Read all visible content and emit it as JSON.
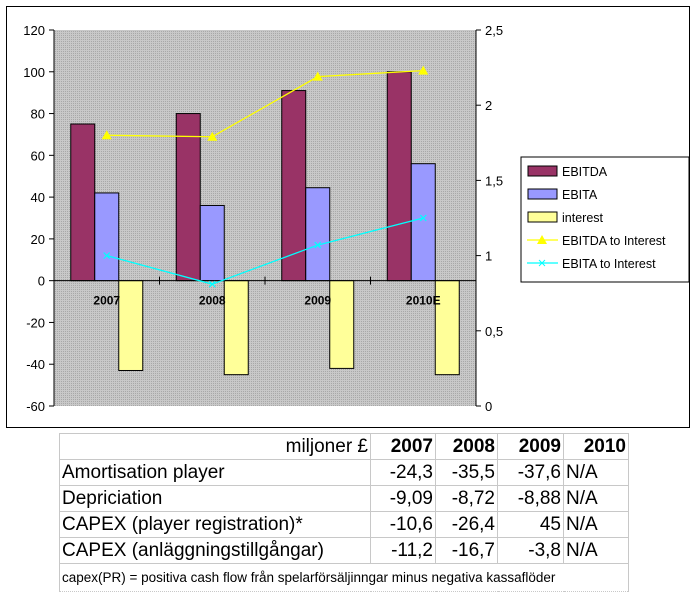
{
  "chart_data": {
    "type": "bar",
    "categories": [
      "2007",
      "2008",
      "2009",
      "2010E"
    ],
    "series": [
      {
        "name": "EBITDA",
        "kind": "bar",
        "axis": "left",
        "color": "#993366",
        "values": [
          75,
          80,
          91,
          100
        ]
      },
      {
        "name": "EBITA",
        "kind": "bar",
        "axis": "left",
        "color": "#9999FF",
        "values": [
          42,
          36,
          44.5,
          56
        ]
      },
      {
        "name": "interest",
        "kind": "bar",
        "axis": "left",
        "color": "#FFFF99",
        "values": [
          -43,
          -45,
          -42,
          -45
        ]
      },
      {
        "name": "EBITDA to Interest",
        "kind": "line",
        "axis": "right",
        "marker": "triangle",
        "color": "#FFFF00",
        "values": [
          1.8,
          1.79,
          2.19,
          2.23
        ]
      },
      {
        "name": "EBITA to Interest",
        "kind": "line",
        "axis": "right",
        "marker": "x",
        "color": "#00FFFF",
        "values": [
          1.0,
          0.81,
          1.07,
          1.25
        ]
      }
    ],
    "y_left": {
      "min": -60,
      "max": 120,
      "ticks": [
        "120",
        "100",
        "80",
        "60",
        "40",
        "20",
        "0",
        "-20",
        "-40",
        "-60"
      ]
    },
    "y_right": {
      "min": 0,
      "max": 2.5,
      "ticks": [
        "2,5",
        "2",
        "1,5",
        "1",
        "0,5",
        "0"
      ]
    },
    "legend_position": "right",
    "plot_background": "#C0C0C0",
    "grid": false
  },
  "table": {
    "header": {
      "unit": "miljoner £",
      "years": [
        "2007",
        "2008",
        "2009",
        "2010"
      ]
    },
    "rows": [
      {
        "label": "Amortisation player",
        "values": [
          "-24,3",
          "-35,5",
          "-37,6",
          "N/A"
        ]
      },
      {
        "label": "Depriciation",
        "values": [
          "-9,09",
          "-8,72",
          "-8,88",
          "N/A"
        ]
      },
      {
        "label": "CAPEX (player registration)*",
        "values": [
          "-10,6",
          "-26,4",
          "45",
          "N/A"
        ]
      },
      {
        "label": "CAPEX (anläggningstillgångar)",
        "values": [
          "-11,2",
          "-16,7",
          "-3,8",
          "N/A"
        ]
      }
    ],
    "footnote": "capex(PR) = positiva cash flow från spelarförsäljinngar minus negativa kassaflöder"
  }
}
